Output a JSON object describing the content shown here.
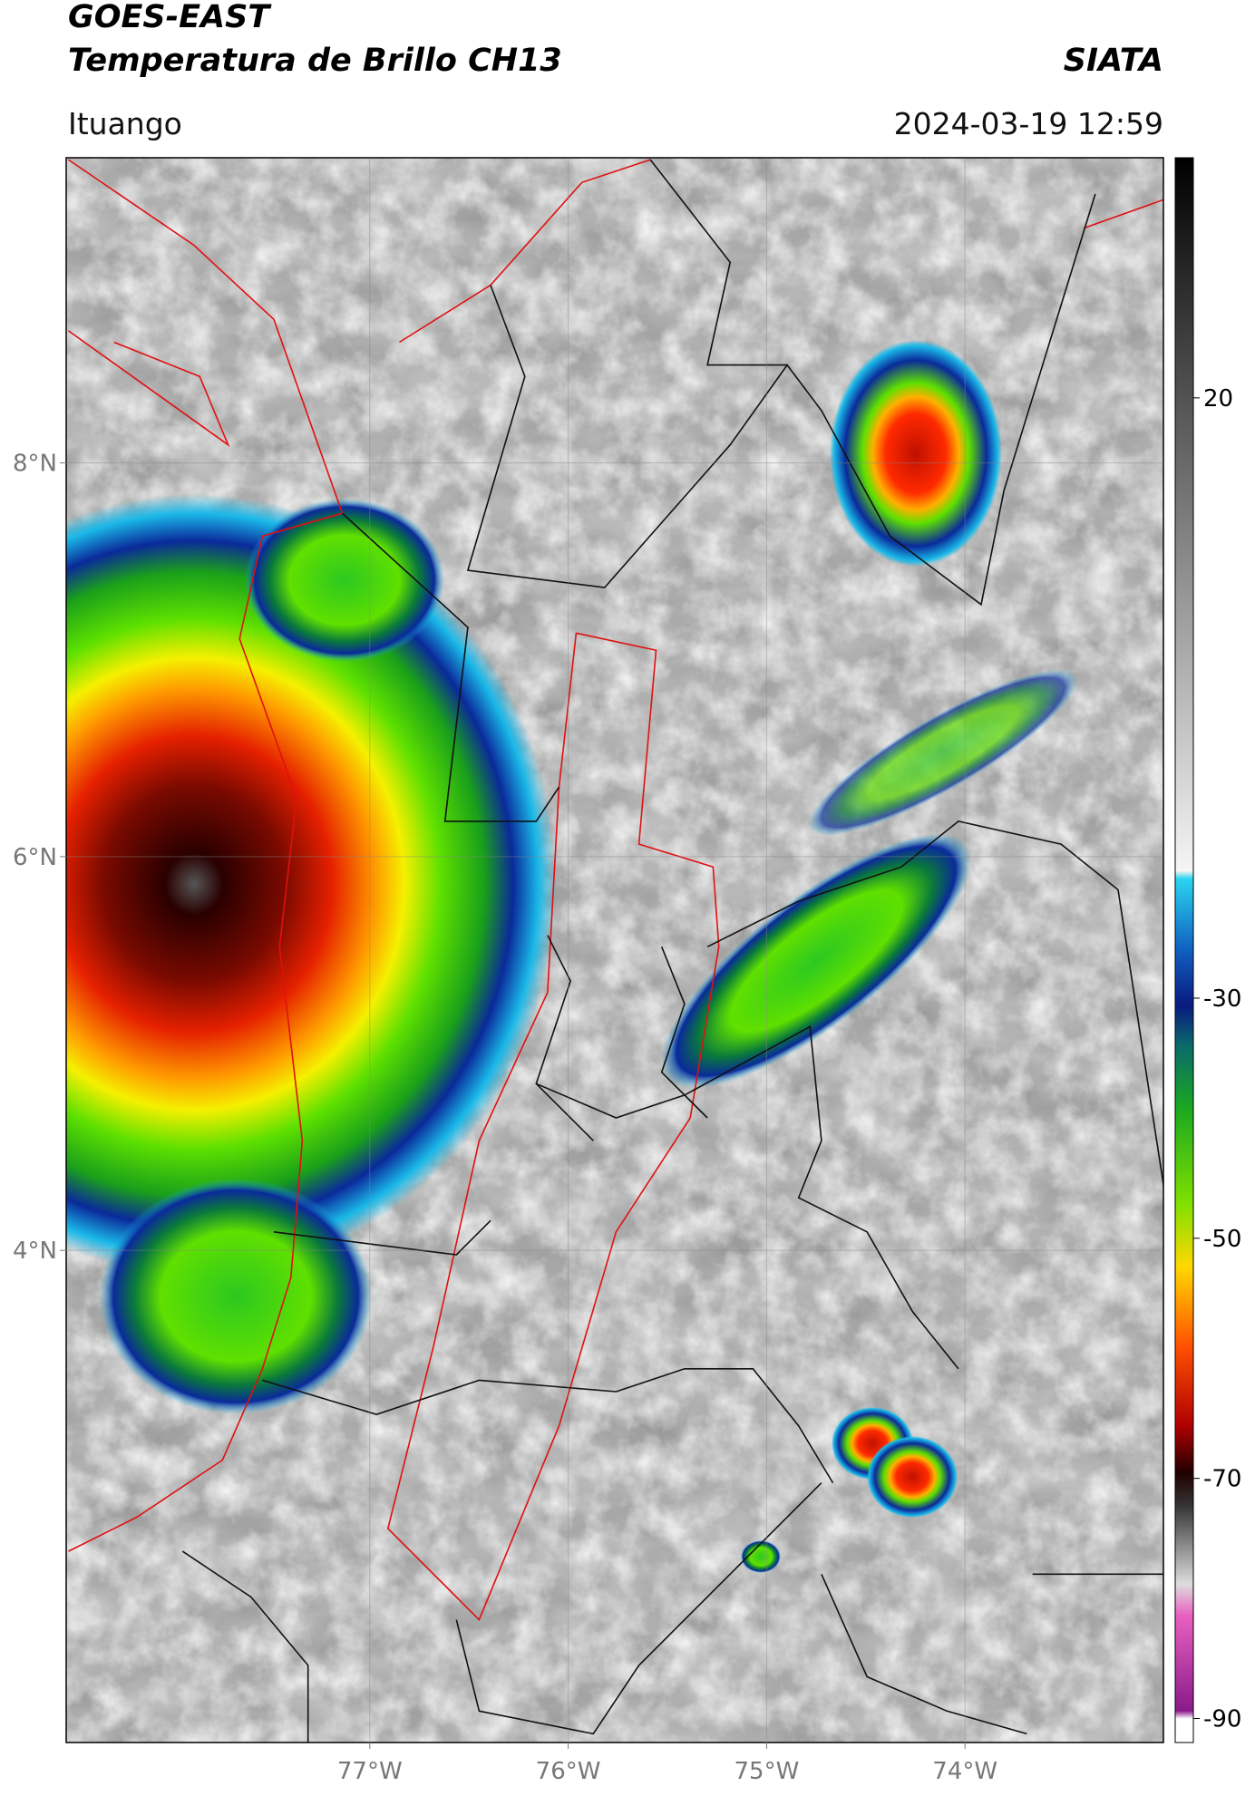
{
  "header": {
    "title": "GOES-EAST",
    "subtitle": "Temperatura de Brillo CH13",
    "source": "SIATA",
    "location": "Ituango",
    "timestamp": "2024-03-19 12:59"
  },
  "map": {
    "lonlim": [
      -78.53,
      -73.0
    ],
    "latlim": [
      1.5,
      9.55
    ],
    "lonticks": [
      {
        "value": -77,
        "label": "77°W"
      },
      {
        "value": -76,
        "label": "76°W"
      },
      {
        "value": -75,
        "label": "75°W"
      },
      {
        "value": -74,
        "label": "74°W"
      }
    ],
    "latticks": [
      {
        "value": 8,
        "label": "8°N"
      },
      {
        "value": 6,
        "label": "6°N"
      },
      {
        "value": 4,
        "label": "4°N"
      }
    ]
  },
  "colorbar": {
    "lim": [
      -92,
      40
    ],
    "ticks": [
      20,
      -30,
      -50,
      -70,
      -90
    ]
  }
}
